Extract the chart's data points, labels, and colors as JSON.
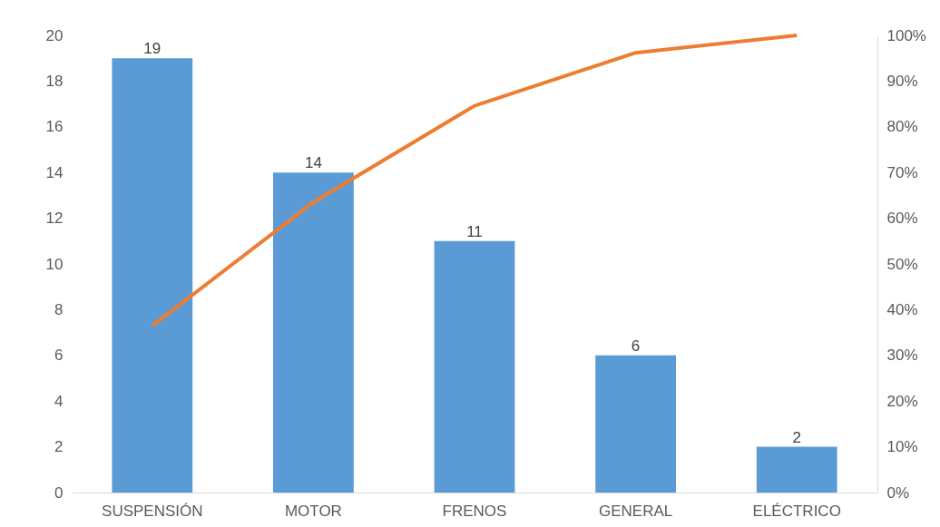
{
  "chart_data": {
    "type": "bar",
    "categories": [
      "SUSPENSIÓN",
      "MOTOR",
      "FRENOS",
      "GENERAL",
      "ELÉCTRICO"
    ],
    "series": [
      {
        "color": "#5b9bd5",
        "values": [
          19,
          14,
          11,
          6,
          2
        ],
        "value_labels": [
          "19",
          "14",
          "11",
          "6",
          "2"
        ]
      },
      {
        "type": "line",
        "axis": "y2",
        "color": "#ed7d31",
        "values": [
          36.5,
          63.5,
          84.6,
          96.2,
          100
        ]
      }
    ],
    "ylim": [
      0,
      20
    ],
    "yticks": [
      0,
      2,
      4,
      6,
      8,
      10,
      12,
      14,
      16,
      18,
      20
    ],
    "y2lim": [
      0,
      100
    ],
    "y2ticks": [
      {
        "value": 0,
        "label": "0%"
      },
      {
        "value": 10,
        "label": "10%"
      },
      {
        "value": 20,
        "label": "20%"
      },
      {
        "value": 30,
        "label": "30%"
      },
      {
        "value": 40,
        "label": "40%"
      },
      {
        "value": 50,
        "label": "50%"
      },
      {
        "value": 60,
        "label": "60%"
      },
      {
        "value": 70,
        "label": "70%"
      },
      {
        "value": 80,
        "label": "80%"
      },
      {
        "value": 90,
        "label": "90%"
      },
      {
        "value": 100,
        "label": "100%"
      }
    ]
  }
}
